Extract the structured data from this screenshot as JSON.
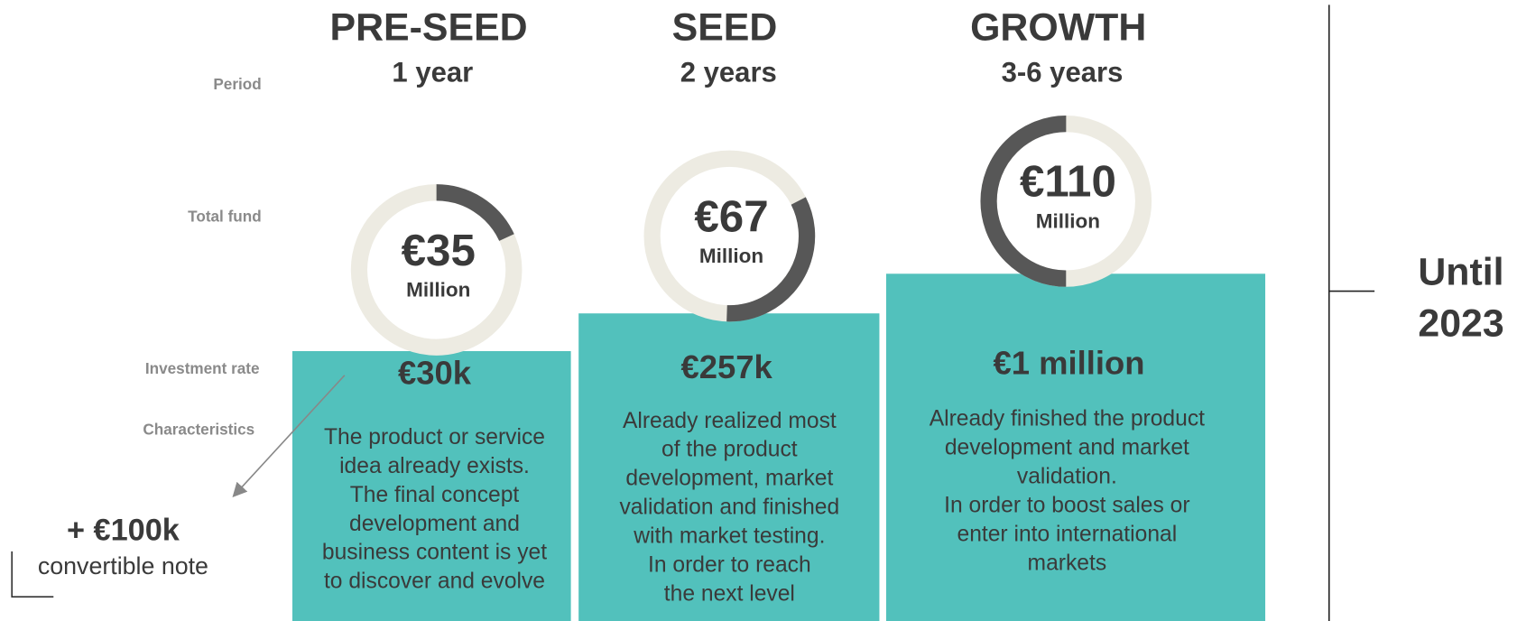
{
  "row_labels": [
    "Period",
    "Total fund",
    "Investment rate",
    "Characteristics"
  ],
  "stages": [
    {
      "name": "PRE-SEED",
      "period": "1 year",
      "fund": "€35",
      "fund_unit": "Million",
      "rate": "€30k",
      "characteristics": [
        "The product or service",
        "idea already exists.",
        "The final concept",
        "development and",
        "business content is yet",
        "to discover and evolve"
      ]
    },
    {
      "name": "SEED",
      "period": "2 years",
      "fund": "€67",
      "fund_unit": "Million",
      "rate": "€257k",
      "characteristics": [
        "Already realized most",
        "of the product",
        "development, market",
        "validation and finished",
        "with market testing.",
        "In order to reach",
        "the next level"
      ]
    },
    {
      "name": "GROWTH",
      "period": "3-6 years",
      "fund": "€110",
      "fund_unit": "Million",
      "rate": "€1 million",
      "characteristics": [
        "Already finished the product",
        "development and market",
        "validation.",
        "In order to boost sales or",
        "enter into international",
        "markets"
      ]
    }
  ],
  "note": {
    "amount": "+ €100k",
    "text": "convertible note"
  },
  "side": [
    "Until",
    "2023"
  ]
}
